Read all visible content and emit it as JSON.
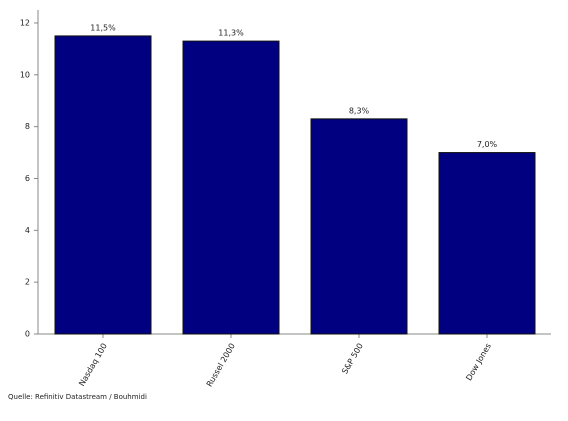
{
  "chart_data": {
    "type": "bar",
    "categories": [
      "Nasdaq 100",
      "Russel 2000",
      "S&P 500",
      "Dow Jones"
    ],
    "values": [
      11.5,
      11.3,
      8.3,
      7.0
    ],
    "value_labels": [
      "11,5%",
      "11,3%",
      "8,3%",
      "7,0%"
    ],
    "color": "#000080",
    "ylim": [
      0,
      12.5
    ],
    "yticks": [
      0,
      2,
      4,
      6,
      8,
      10,
      12
    ],
    "grid": false,
    "source": "Quelle: Refinitiv Datastream / Bouhmidi"
  }
}
